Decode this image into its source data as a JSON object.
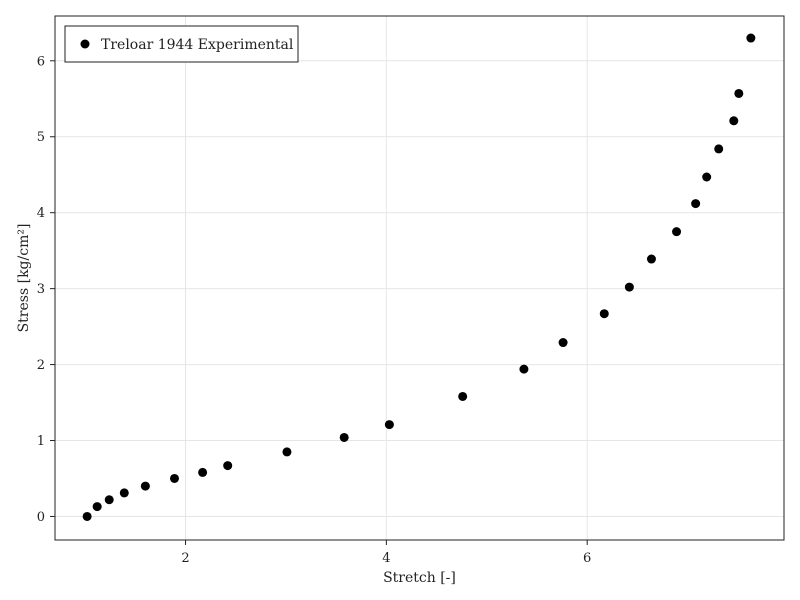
{
  "chart_data": {
    "type": "scatter",
    "title": "",
    "xlabel": "Stretch [-]",
    "ylabel": "Stress [kg/cm²]",
    "xlim": [
      0.7,
      7.96
    ],
    "ylim": [
      -0.31,
      6.59
    ],
    "xticks": [
      2,
      4,
      6
    ],
    "yticks": [
      0,
      1,
      2,
      3,
      4,
      5,
      6
    ],
    "grid": true,
    "legend_position": "top-left",
    "series": [
      {
        "name": "Treloar 1944 Experimental",
        "color": "#000000",
        "marker": "circle",
        "points": [
          {
            "x": 1.02,
            "y": 0.0
          },
          {
            "x": 1.12,
            "y": 0.13
          },
          {
            "x": 1.24,
            "y": 0.22
          },
          {
            "x": 1.39,
            "y": 0.31
          },
          {
            "x": 1.6,
            "y": 0.4
          },
          {
            "x": 1.89,
            "y": 0.5
          },
          {
            "x": 2.17,
            "y": 0.58
          },
          {
            "x": 2.42,
            "y": 0.67
          },
          {
            "x": 3.01,
            "y": 0.85
          },
          {
            "x": 3.58,
            "y": 1.04
          },
          {
            "x": 4.03,
            "y": 1.21
          },
          {
            "x": 4.76,
            "y": 1.58
          },
          {
            "x": 5.37,
            "y": 1.94
          },
          {
            "x": 5.76,
            "y": 2.29
          },
          {
            "x": 6.17,
            "y": 2.67
          },
          {
            "x": 6.42,
            "y": 3.02
          },
          {
            "x": 6.64,
            "y": 3.39
          },
          {
            "x": 6.89,
            "y": 3.75
          },
          {
            "x": 7.08,
            "y": 4.12
          },
          {
            "x": 7.19,
            "y": 4.47
          },
          {
            "x": 7.31,
            "y": 4.84
          },
          {
            "x": 7.46,
            "y": 5.21
          },
          {
            "x": 7.51,
            "y": 5.57
          },
          {
            "x": 7.63,
            "y": 6.3
          }
        ]
      }
    ]
  }
}
